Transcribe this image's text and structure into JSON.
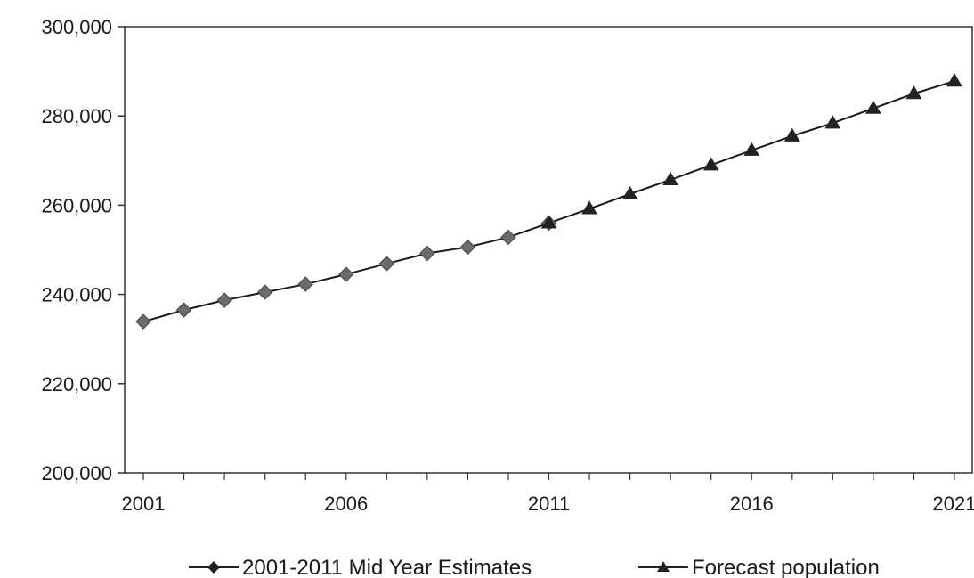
{
  "chart_data": {
    "type": "line",
    "title": "",
    "xlabel": "",
    "ylabel": "",
    "xlim": [
      2001,
      2021
    ],
    "ylim": [
      200000,
      300000
    ],
    "x_ticks": [
      2001,
      2006,
      2011,
      2016,
      2021
    ],
    "x_tick_labels": [
      "2001",
      "2006",
      "2011",
      "2016",
      "2021"
    ],
    "y_ticks": [
      200000,
      220000,
      240000,
      260000,
      280000,
      300000
    ],
    "y_tick_labels": [
      "200,000",
      "220,000",
      "240,000",
      "260,000",
      "280,000",
      "300,000"
    ],
    "grid": false,
    "legend_position": "bottom",
    "series": [
      {
        "name": "2001-2011 Mid Year Estimates",
        "marker": "diamond",
        "color": "#6b6b6b",
        "x": [
          2001,
          2002,
          2003,
          2004,
          2005,
          2006,
          2007,
          2008,
          2009,
          2010,
          2011
        ],
        "values": [
          233900,
          236500,
          238700,
          240500,
          242300,
          244500,
          246900,
          249200,
          250600,
          252800,
          256000
        ]
      },
      {
        "name": "Forecast population",
        "marker": "triangle",
        "color": "#222222",
        "x": [
          2011,
          2012,
          2013,
          2014,
          2015,
          2016,
          2017,
          2018,
          2019,
          2020,
          2021
        ],
        "values": [
          256000,
          259200,
          262500,
          265700,
          269000,
          272300,
          275500,
          278400,
          281700,
          285000,
          287800
        ]
      }
    ],
    "legend": {
      "items": [
        "2001-2011 Mid Year Estimates",
        "Forecast population"
      ]
    }
  }
}
